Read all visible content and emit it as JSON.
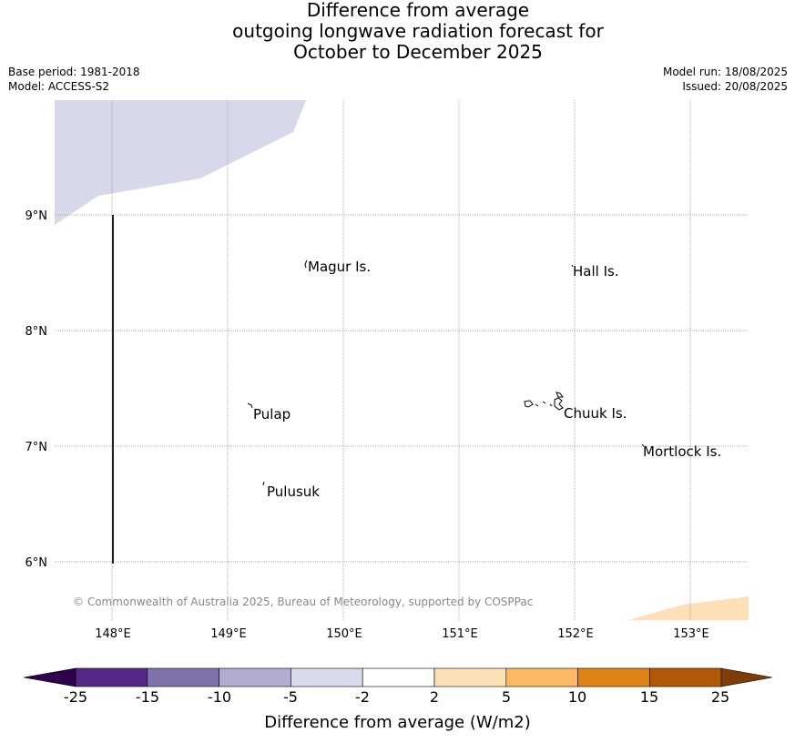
{
  "title_lines": [
    "Difference from average",
    "outgoing longwave radiation forecast for",
    "October to December 2025"
  ],
  "base_period": "Base period: 1981-2018",
  "model": "Model: ACCESS-S2",
  "model_run": "Model run: 18/08/2025",
  "issued": "Issued: 20/08/2025",
  "map": {
    "lon_ticks": [
      "148°E",
      "149°E",
      "150°E",
      "151°E",
      "152°E",
      "153°E"
    ],
    "lat_ticks": [
      "9°N",
      "8°N",
      "7°N",
      "6°N"
    ],
    "places": [
      "Magur Is.",
      "Hall Is.",
      "Pulap",
      "Chuuk Is.",
      "Mortlock Is.",
      "Pulusuk"
    ],
    "copyright": "© Commonwealth of Australia 2025, Bureau of Meteorology, supported by COSPPac",
    "colors": {
      "anomaly_negative": "#d7d8ea",
      "anomaly_positive": "#fde0b8",
      "grid": "#999999"
    }
  },
  "colorbar": {
    "label": "Difference from average (W/m2)",
    "ticks": [
      "-25",
      "-15",
      "-10",
      "-5",
      "-2",
      "2",
      "5",
      "10",
      "15",
      "25"
    ],
    "colors": [
      "#2d004b",
      "#542788",
      "#8073ac",
      "#b2abd2",
      "#d8daeb",
      "#ffffff",
      "#fee0b6",
      "#fdb863",
      "#e08214",
      "#b35806",
      "#7f3b08"
    ]
  }
}
